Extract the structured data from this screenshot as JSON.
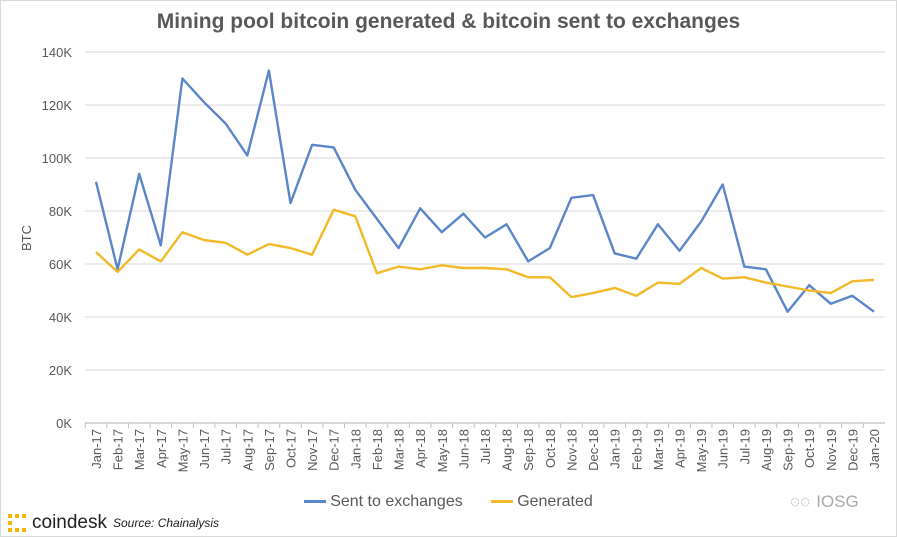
{
  "chart_data": {
    "type": "line",
    "title": "Mining pool bitcoin generated & bitcoin sent to exchanges",
    "ylabel": "BTC",
    "xlabel": "",
    "ylim": [
      0,
      140000
    ],
    "yticks": [
      "0K",
      "20K",
      "40K",
      "60K",
      "80K",
      "100K",
      "120K",
      "140K"
    ],
    "grid": true,
    "legend_position": "bottom",
    "categories": [
      "Jan-17",
      "Feb-17",
      "Mar-17",
      "Apr-17",
      "May-17",
      "Jun-17",
      "Jul-17",
      "Aug-17",
      "Sep-17",
      "Oct-17",
      "Nov-17",
      "Dec-17",
      "Jan-18",
      "Feb-18",
      "Mar-18",
      "Apr-18",
      "May-18",
      "Jun-18",
      "Jul-18",
      "Aug-18",
      "Sep-18",
      "Oct-18",
      "Nov-18",
      "Dec-18",
      "Jan-19",
      "Feb-19",
      "Mar-19",
      "Apr-19",
      "May-19",
      "Jun-19",
      "Jul-19",
      "Aug-19",
      "Sep-19",
      "Oct-19",
      "Nov-19",
      "Dec-19",
      "Jan-20"
    ],
    "series": [
      {
        "name": "Sent to exchanges",
        "color": "#5b86c9",
        "values": [
          91000,
          58000,
          94000,
          67000,
          130000,
          121000,
          113000,
          101000,
          133000,
          83000,
          105000,
          104000,
          88000,
          77000,
          66000,
          81000,
          72000,
          79000,
          70000,
          75000,
          61000,
          66000,
          85000,
          86000,
          64000,
          62000,
          75000,
          65000,
          76000,
          90000,
          59000,
          58000,
          42000,
          52000,
          45000,
          48000,
          42000
        ]
      },
      {
        "name": "Generated",
        "color": "#f2b928",
        "values": [
          64500,
          57000,
          65500,
          61000,
          72000,
          69000,
          68000,
          63500,
          67500,
          66000,
          63500,
          80500,
          78000,
          56500,
          59000,
          58000,
          59500,
          58500,
          58500,
          58000,
          55000,
          55000,
          47500,
          49000,
          51000,
          48000,
          53000,
          52500,
          58500,
          54500,
          55000,
          53000,
          51500,
          50000,
          49000,
          53500,
          54000
        ]
      }
    ]
  },
  "footer": {
    "brand": "coindesk",
    "source": "Source: Chainalysis",
    "watermark": "IOSG",
    "brand_color": "#f7b500"
  }
}
